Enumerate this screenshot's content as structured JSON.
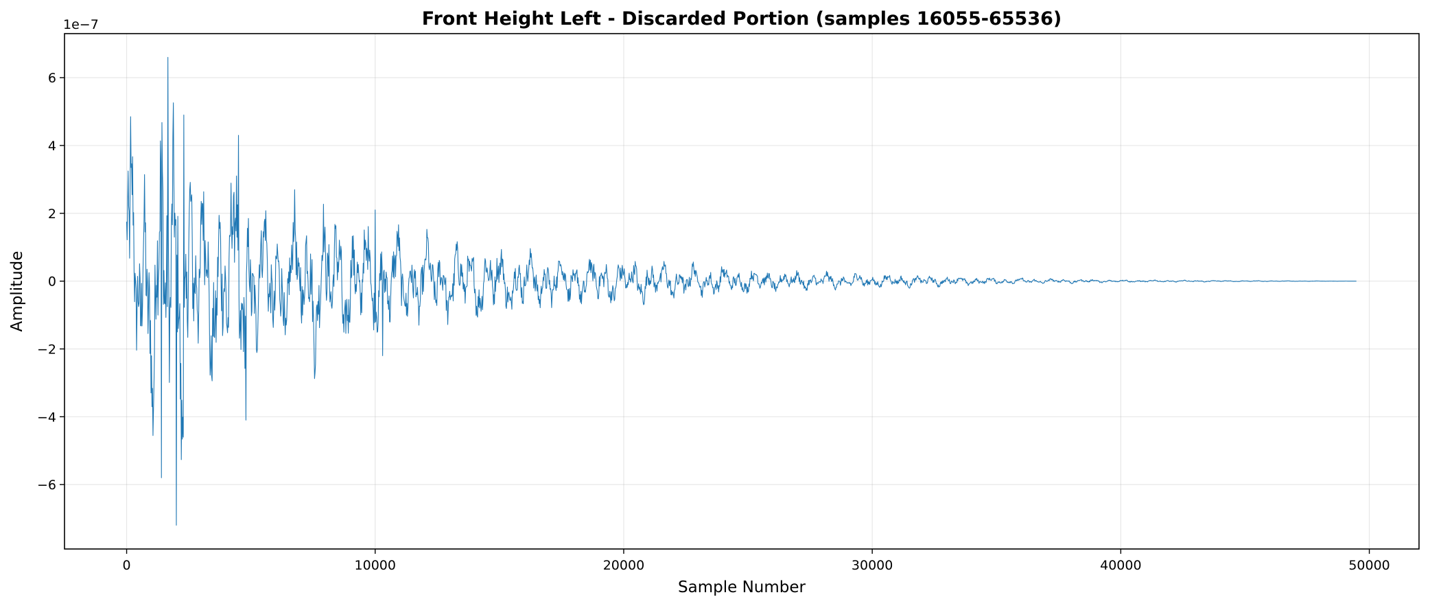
{
  "chart_data": {
    "type": "line",
    "title": "Front Height Left - Discarded Portion (samples 16055-65536)",
    "xlabel": "Sample Number",
    "ylabel": "Amplitude",
    "y_offset_label": "1e−7",
    "xlim": [
      -2500,
      52000
    ],
    "ylim": [
      -7.9,
      7.3
    ],
    "y_scale_factor": 1e-07,
    "grid": true,
    "x_ticks": [
      0,
      10000,
      20000,
      30000,
      40000,
      50000
    ],
    "x_tick_labels": [
      "0",
      "10000",
      "20000",
      "30000",
      "40000",
      "50000"
    ],
    "y_ticks": [
      -6,
      -4,
      -2,
      0,
      2,
      4,
      6
    ],
    "y_tick_labels": [
      "−6",
      "−4",
      "−2",
      "0",
      "2",
      "4",
      "6"
    ],
    "series": [
      {
        "color": "#1f77b4",
        "x_start": 0,
        "x_end": 49481,
        "envelope": [
          {
            "x": 0,
            "amp": 5.0
          },
          {
            "x": 500,
            "amp": 4.6
          },
          {
            "x": 1700,
            "amp": 6.6
          },
          {
            "x": 2000,
            "amp": 7.2
          },
          {
            "x": 2500,
            "amp": 4.9
          },
          {
            "x": 3500,
            "amp": 3.9
          },
          {
            "x": 4500,
            "amp": 4.3
          },
          {
            "x": 5500,
            "amp": 2.6
          },
          {
            "x": 7500,
            "amp": 3.0
          },
          {
            "x": 10000,
            "amp": 2.1
          },
          {
            "x": 12500,
            "amp": 1.5
          },
          {
            "x": 15000,
            "amp": 1.3
          },
          {
            "x": 17500,
            "amp": 0.95
          },
          {
            "x": 20000,
            "amp": 0.85
          },
          {
            "x": 22500,
            "amp": 0.65
          },
          {
            "x": 25000,
            "amp": 0.45
          },
          {
            "x": 27500,
            "amp": 0.35
          },
          {
            "x": 30000,
            "amp": 0.27
          },
          {
            "x": 32500,
            "amp": 0.2
          },
          {
            "x": 35000,
            "amp": 0.12
          },
          {
            "x": 37500,
            "amp": 0.09
          },
          {
            "x": 40000,
            "amp": 0.05
          },
          {
            "x": 45000,
            "amp": 0.02
          },
          {
            "x": 49481,
            "amp": 0.0
          }
        ],
        "peaks": [
          {
            "x": 150,
            "y": 4.85
          },
          {
            "x": 1650,
            "y": 6.6
          },
          {
            "x": 2300,
            "y": 4.9
          },
          {
            "x": 4500,
            "y": 4.3
          },
          {
            "x": 1400,
            "y": -5.8
          },
          {
            "x": 2000,
            "y": -7.2
          },
          {
            "x": 4800,
            "y": -4.1
          },
          {
            "x": 10000,
            "y": 2.1
          },
          {
            "x": 10300,
            "y": -2.2
          }
        ]
      }
    ]
  }
}
